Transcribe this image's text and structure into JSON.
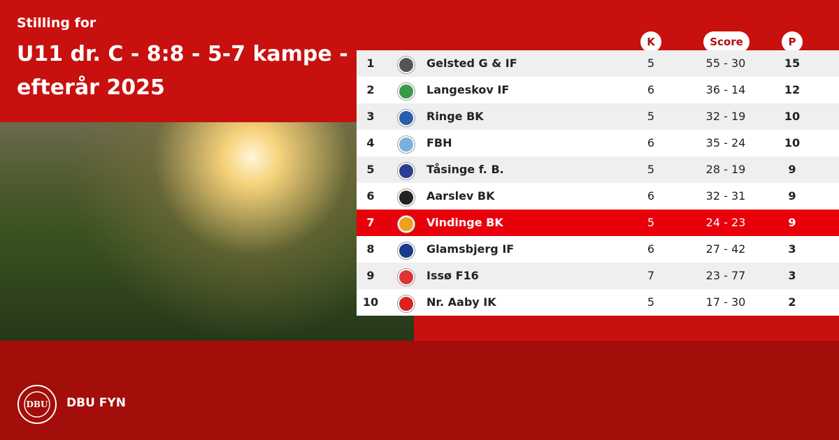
{
  "header": {
    "subtitle": "Stilling for",
    "title": "U11 dr. C - 8:8 - 5-7 kampe - efterår 2025"
  },
  "table": {
    "columns": [
      "K",
      "Score",
      "P"
    ],
    "rows": [
      {
        "rank": 1,
        "team": "Gelsted G & IF",
        "played": 5,
        "score": "55 - 30",
        "points": 15
      },
      {
        "rank": 2,
        "team": "Langeskov IF",
        "played": 6,
        "score": "36 - 14",
        "points": 12
      },
      {
        "rank": 3,
        "team": "Ringe BK",
        "played": 5,
        "score": "32 - 19",
        "points": 10
      },
      {
        "rank": 4,
        "team": "FBH",
        "played": 6,
        "score": "35 - 24",
        "points": 10
      },
      {
        "rank": 5,
        "team": "Tåsinge  f. B.",
        "played": 5,
        "score": "28 - 19",
        "points": 9
      },
      {
        "rank": 6,
        "team": "Aarslev BK",
        "played": 6,
        "score": "32 - 31",
        "points": 9
      },
      {
        "rank": 7,
        "team": "Vindinge BK",
        "played": 5,
        "score": "24 - 23",
        "points": 9,
        "highlight": true
      },
      {
        "rank": 8,
        "team": "Glamsbjerg IF",
        "played": 6,
        "score": "27 - 42",
        "points": 3
      },
      {
        "rank": 9,
        "team": "Issø F16",
        "played": 7,
        "score": "23 - 77",
        "points": 3
      },
      {
        "rank": 10,
        "team": "Nr. Aaby IK",
        "played": 5,
        "score": "17 - 30",
        "points": 2
      }
    ]
  },
  "footer": {
    "brand": "DBU FYN",
    "logo_text": "DBU"
  }
}
